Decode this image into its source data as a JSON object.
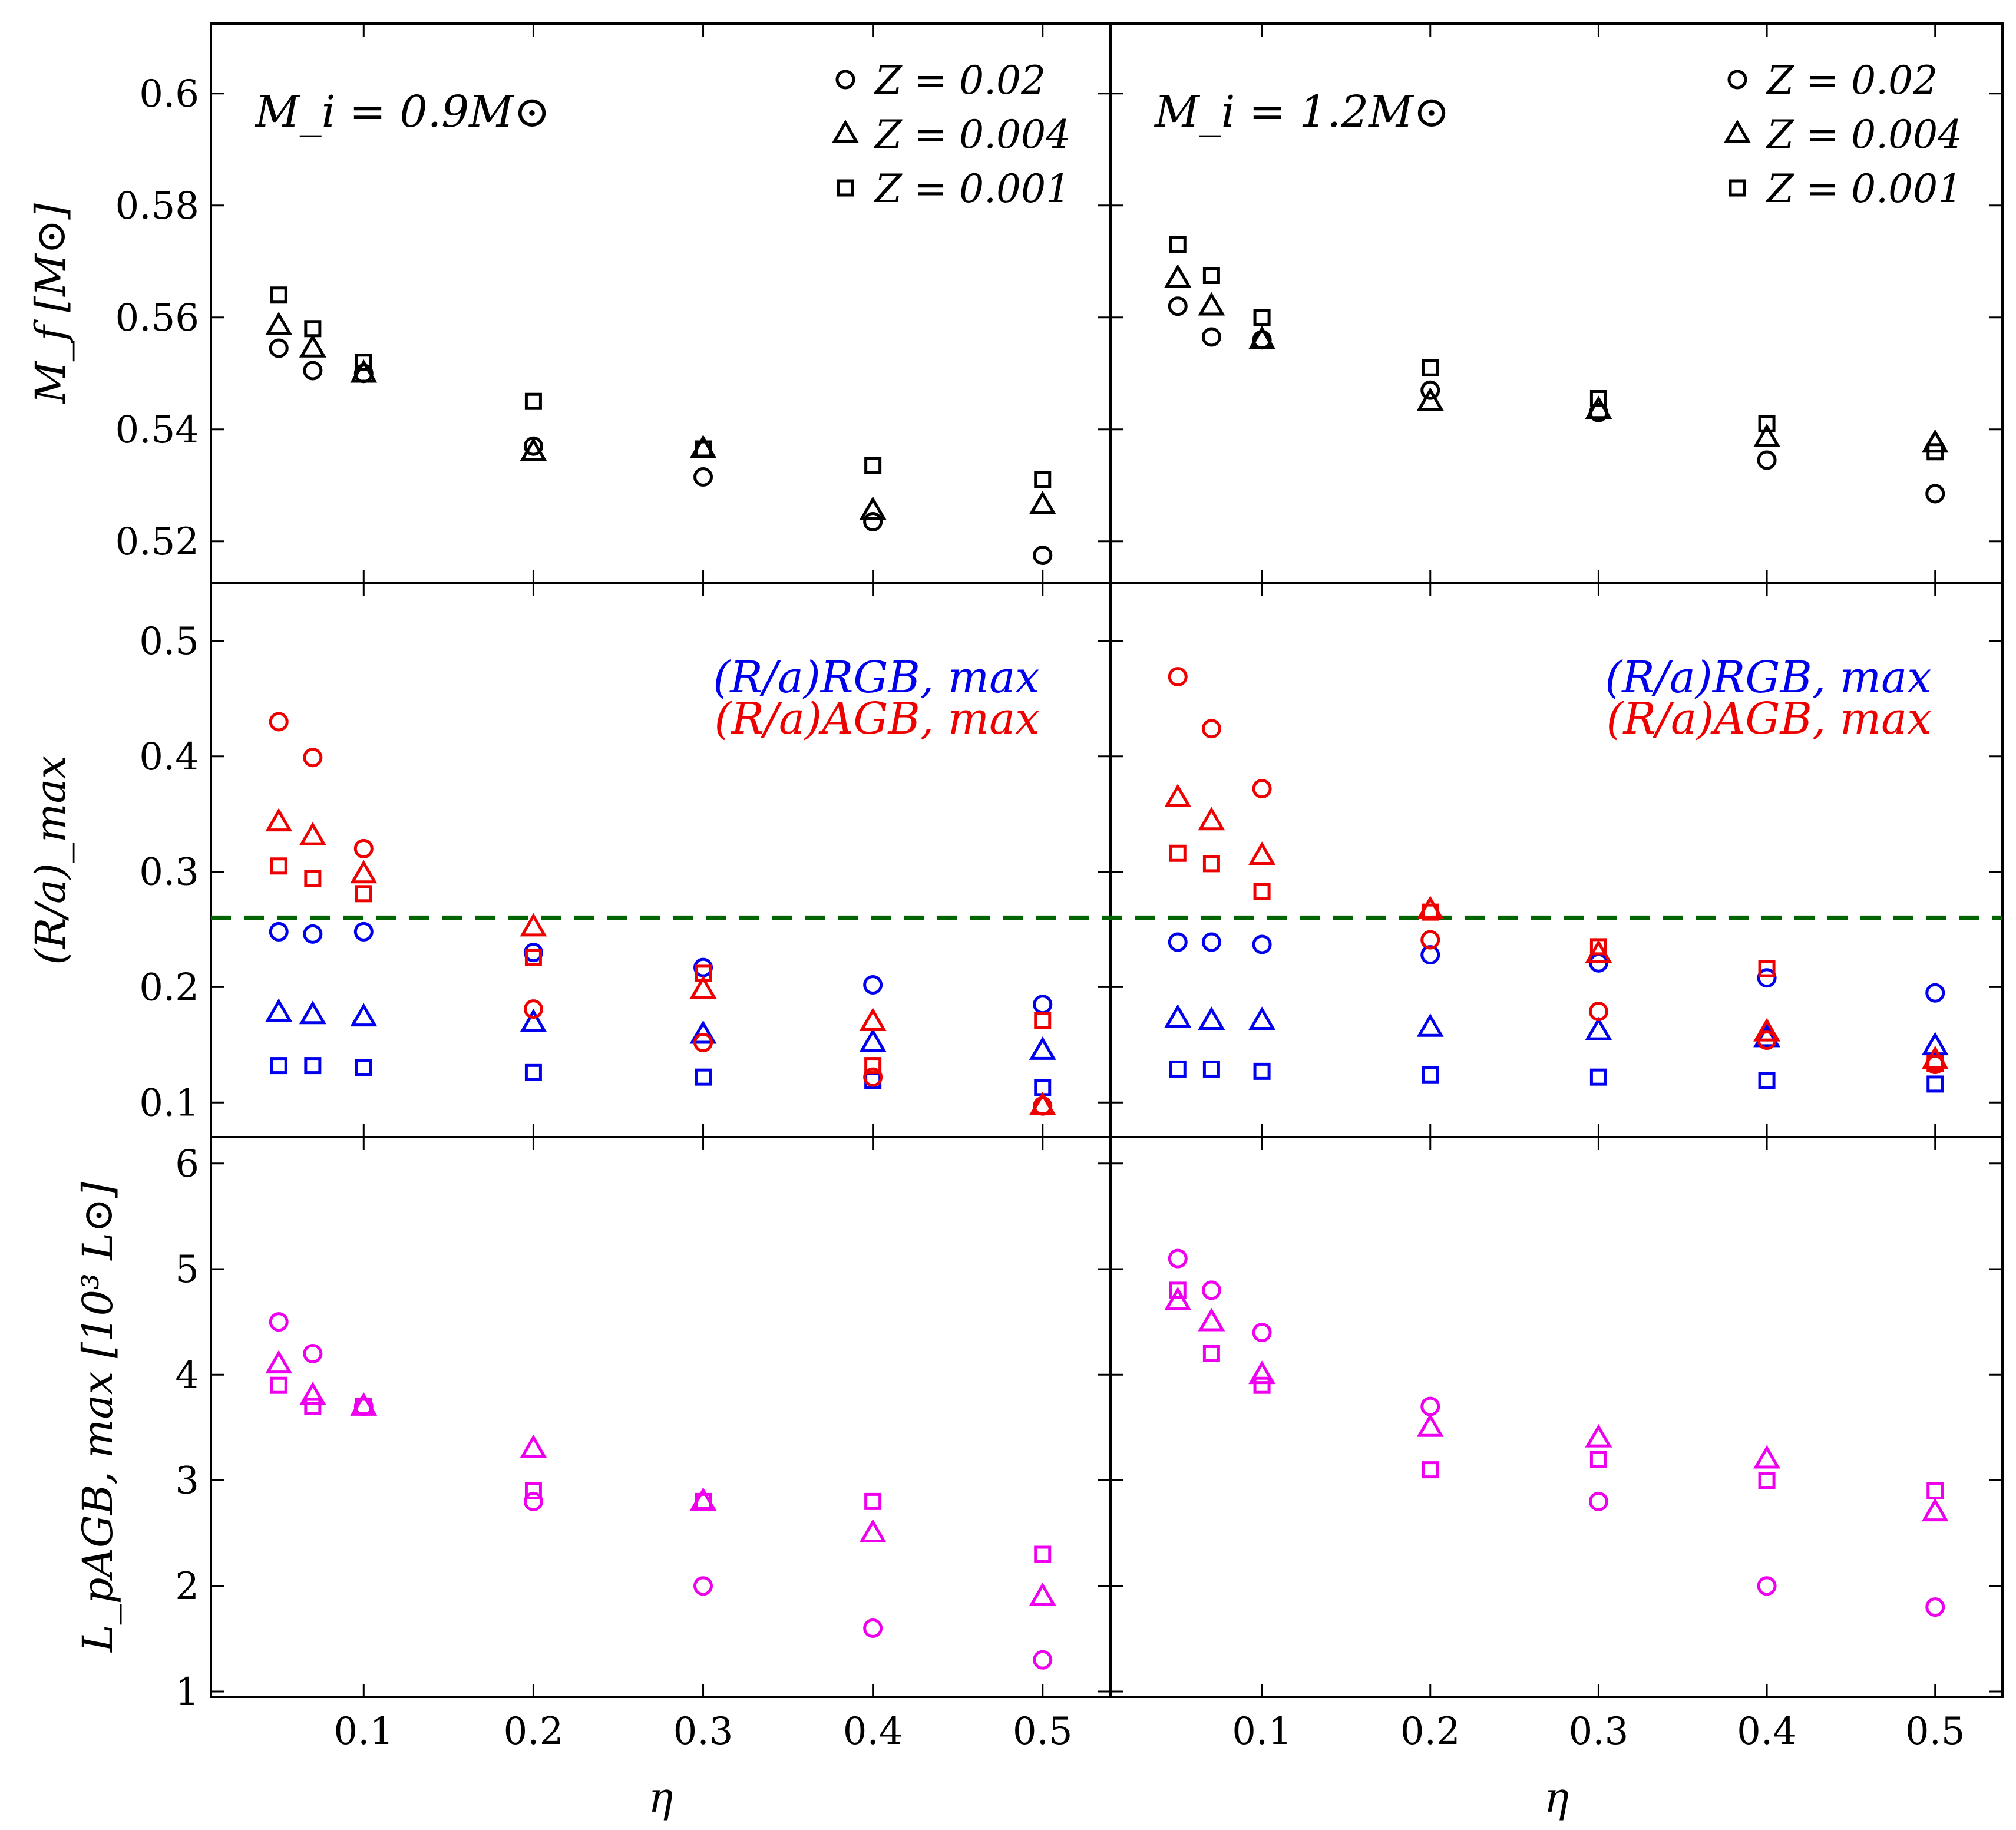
{
  "chart_data": {
    "type": "scatter",
    "x_label": "η",
    "x_ticks": [
      "0.1",
      "0.2",
      "0.3",
      "0.4",
      "0.5"
    ],
    "xlim": [
      0.01,
      0.54
    ],
    "columns": [
      {
        "annotation": "M_i = 0.9M⊙"
      },
      {
        "annotation": "M_i = 1.2M⊙"
      }
    ],
    "rows": [
      {
        "ylabel": "M_f [M⊙]",
        "ylim": [
          0.5125,
          0.6125
        ],
        "yticks": [
          0.52,
          0.54,
          0.56,
          0.58,
          0.6
        ],
        "ytick_labels": [
          "0.52",
          "0.54",
          "0.56",
          "0.58",
          "0.6"
        ],
        "legend": [
          {
            "marker": "circle",
            "label": "Z = 0.02"
          },
          {
            "marker": "triangle",
            "label": "Z = 0.004"
          },
          {
            "marker": "square",
            "label": "Z = 0.001"
          }
        ]
      },
      {
        "ylabel": "(R/a)_max",
        "ylim": [
          0.07,
          0.55
        ],
        "yticks": [
          0.1,
          0.2,
          0.3,
          0.4,
          0.5
        ],
        "ytick_labels": [
          "0.1",
          "0.2",
          "0.3",
          "0.4",
          "0.5"
        ],
        "legend": [
          {
            "label": "(R/a)RGB, max",
            "color": "#0000ee"
          },
          {
            "label": "(R/a)AGB, max",
            "color": "#ee0000"
          }
        ],
        "hline": {
          "y": 0.26,
          "color": "#006400",
          "style": "dashed"
        }
      },
      {
        "ylabel": "L_pAGB, max [10³ L⊙]",
        "ylim": [
          0.95,
          6.25
        ],
        "yticks": [
          1,
          2,
          3,
          4,
          5,
          6
        ],
        "ytick_labels": [
          "1",
          "2",
          "3",
          "4",
          "5",
          "6"
        ]
      }
    ],
    "x": [
      0.05,
      0.07,
      0.1,
      0.2,
      0.3,
      0.4,
      0.5
    ],
    "series": [
      {
        "name": "Mf Z=0.02",
        "row": 0,
        "col": 0,
        "marker": "circle",
        "color": "#000000",
        "values": [
          0.5545,
          0.5505,
          0.55,
          0.537,
          0.5315,
          0.5235,
          0.5175
        ]
      },
      {
        "name": "Mf Z=0.004",
        "row": 0,
        "col": 0,
        "marker": "triangle",
        "color": "#000000",
        "values": [
          0.5585,
          0.5545,
          0.55,
          0.536,
          0.5365,
          0.5255,
          0.5265
        ]
      },
      {
        "name": "Mf Z=0.001",
        "row": 0,
        "col": 0,
        "marker": "square",
        "color": "#000000",
        "values": [
          0.564,
          0.558,
          0.552,
          0.545,
          0.5365,
          0.5335,
          0.531
        ]
      },
      {
        "name": "Mf Z=0.02",
        "row": 0,
        "col": 1,
        "marker": "circle",
        "color": "#000000",
        "values": [
          0.562,
          0.5565,
          0.556,
          0.547,
          0.543,
          0.5345,
          0.5285
        ]
      },
      {
        "name": "Mf Z=0.004",
        "row": 0,
        "col": 1,
        "marker": "triangle",
        "color": "#000000",
        "values": [
          0.567,
          0.562,
          0.556,
          0.545,
          0.5435,
          0.5385,
          0.5375
        ]
      },
      {
        "name": "Mf Z=0.001",
        "row": 0,
        "col": 1,
        "marker": "square",
        "color": "#000000",
        "values": [
          0.573,
          0.5675,
          0.56,
          0.551,
          0.5455,
          0.541,
          0.536
        ]
      },
      {
        "name": "RGB Z=0.02",
        "row": 1,
        "col": 0,
        "marker": "circle",
        "color": "#0000ee",
        "values": [
          0.248,
          0.246,
          0.248,
          0.23,
          0.217,
          0.202,
          0.185
        ]
      },
      {
        "name": "RGB Z=0.004",
        "row": 1,
        "col": 0,
        "marker": "triangle",
        "color": "#0000ee",
        "values": [
          0.178,
          0.176,
          0.174,
          0.169,
          0.159,
          0.152,
          0.145
        ]
      },
      {
        "name": "RGB Z=0.001",
        "row": 1,
        "col": 0,
        "marker": "square",
        "color": "#0000ee",
        "values": [
          0.132,
          0.132,
          0.13,
          0.126,
          0.122,
          0.119,
          0.113
        ]
      },
      {
        "name": "AGB Z=0.02",
        "row": 1,
        "col": 0,
        "marker": "circle",
        "color": "#ee0000",
        "values": [
          0.43,
          0.399,
          0.32,
          0.181,
          0.152,
          0.122,
          0.097
        ]
      },
      {
        "name": "AGB Z=0.004",
        "row": 1,
        "col": 0,
        "marker": "triangle",
        "color": "#ee0000",
        "values": [
          0.343,
          0.331,
          0.298,
          0.252,
          0.198,
          0.17,
          0.097
        ]
      },
      {
        "name": "AGB Z=0.001",
        "row": 1,
        "col": 0,
        "marker": "square",
        "color": "#ee0000",
        "values": [
          0.305,
          0.294,
          0.281,
          0.226,
          0.212,
          0.132,
          0.171
        ]
      },
      {
        "name": "RGB Z=0.02",
        "row": 1,
        "col": 1,
        "marker": "circle",
        "color": "#0000ee",
        "values": [
          0.239,
          0.239,
          0.237,
          0.228,
          0.221,
          0.208,
          0.195
        ]
      },
      {
        "name": "RGB Z=0.004",
        "row": 1,
        "col": 1,
        "marker": "triangle",
        "color": "#0000ee",
        "values": [
          0.173,
          0.171,
          0.171,
          0.165,
          0.162,
          0.156,
          0.149
        ]
      },
      {
        "name": "RGB Z=0.001",
        "row": 1,
        "col": 1,
        "marker": "square",
        "color": "#0000ee",
        "values": [
          0.129,
          0.129,
          0.127,
          0.124,
          0.122,
          0.119,
          0.116
        ]
      },
      {
        "name": "AGB Z=0.02",
        "row": 1,
        "col": 1,
        "marker": "circle",
        "color": "#ee0000",
        "values": [
          0.469,
          0.424,
          0.372,
          0.241,
          0.179,
          0.154,
          0.133
        ]
      },
      {
        "name": "AGB Z=0.004",
        "row": 1,
        "col": 1,
        "marker": "triangle",
        "color": "#ee0000",
        "values": [
          0.364,
          0.344,
          0.314,
          0.267,
          0.229,
          0.161,
          0.137
        ]
      },
      {
        "name": "AGB Z=0.001",
        "row": 1,
        "col": 1,
        "marker": "square",
        "color": "#ee0000",
        "values": [
          0.316,
          0.307,
          0.283,
          0.265,
          0.235,
          0.216,
          0.134
        ]
      },
      {
        "name": "L Z=0.02",
        "row": 2,
        "col": 0,
        "marker": "circle",
        "color": "#ee00ee",
        "values": [
          4.5,
          4.2,
          3.7,
          2.8,
          2.0,
          1.6,
          1.3
        ]
      },
      {
        "name": "L Z=0.004",
        "row": 2,
        "col": 0,
        "marker": "triangle",
        "color": "#ee00ee",
        "values": [
          4.1,
          3.8,
          3.7,
          3.3,
          2.8,
          2.5,
          1.9
        ]
      },
      {
        "name": "L Z=0.001",
        "row": 2,
        "col": 0,
        "marker": "square",
        "color": "#ee00ee",
        "values": [
          3.9,
          3.7,
          3.7,
          2.9,
          2.8,
          2.8,
          2.3
        ]
      },
      {
        "name": "L Z=0.02",
        "row": 2,
        "col": 1,
        "marker": "circle",
        "color": "#ee00ee",
        "values": [
          5.1,
          4.8,
          4.4,
          3.7,
          2.8,
          2.0,
          1.8
        ]
      },
      {
        "name": "L Z=0.004",
        "row": 2,
        "col": 1,
        "marker": "triangle",
        "color": "#ee00ee",
        "values": [
          4.7,
          4.5,
          4.0,
          3.5,
          3.4,
          3.2,
          2.7
        ]
      },
      {
        "name": "L Z=0.001",
        "row": 2,
        "col": 1,
        "marker": "square",
        "color": "#ee00ee",
        "values": [
          4.8,
          4.2,
          3.9,
          3.1,
          3.2,
          3.0,
          2.9
        ]
      }
    ]
  }
}
